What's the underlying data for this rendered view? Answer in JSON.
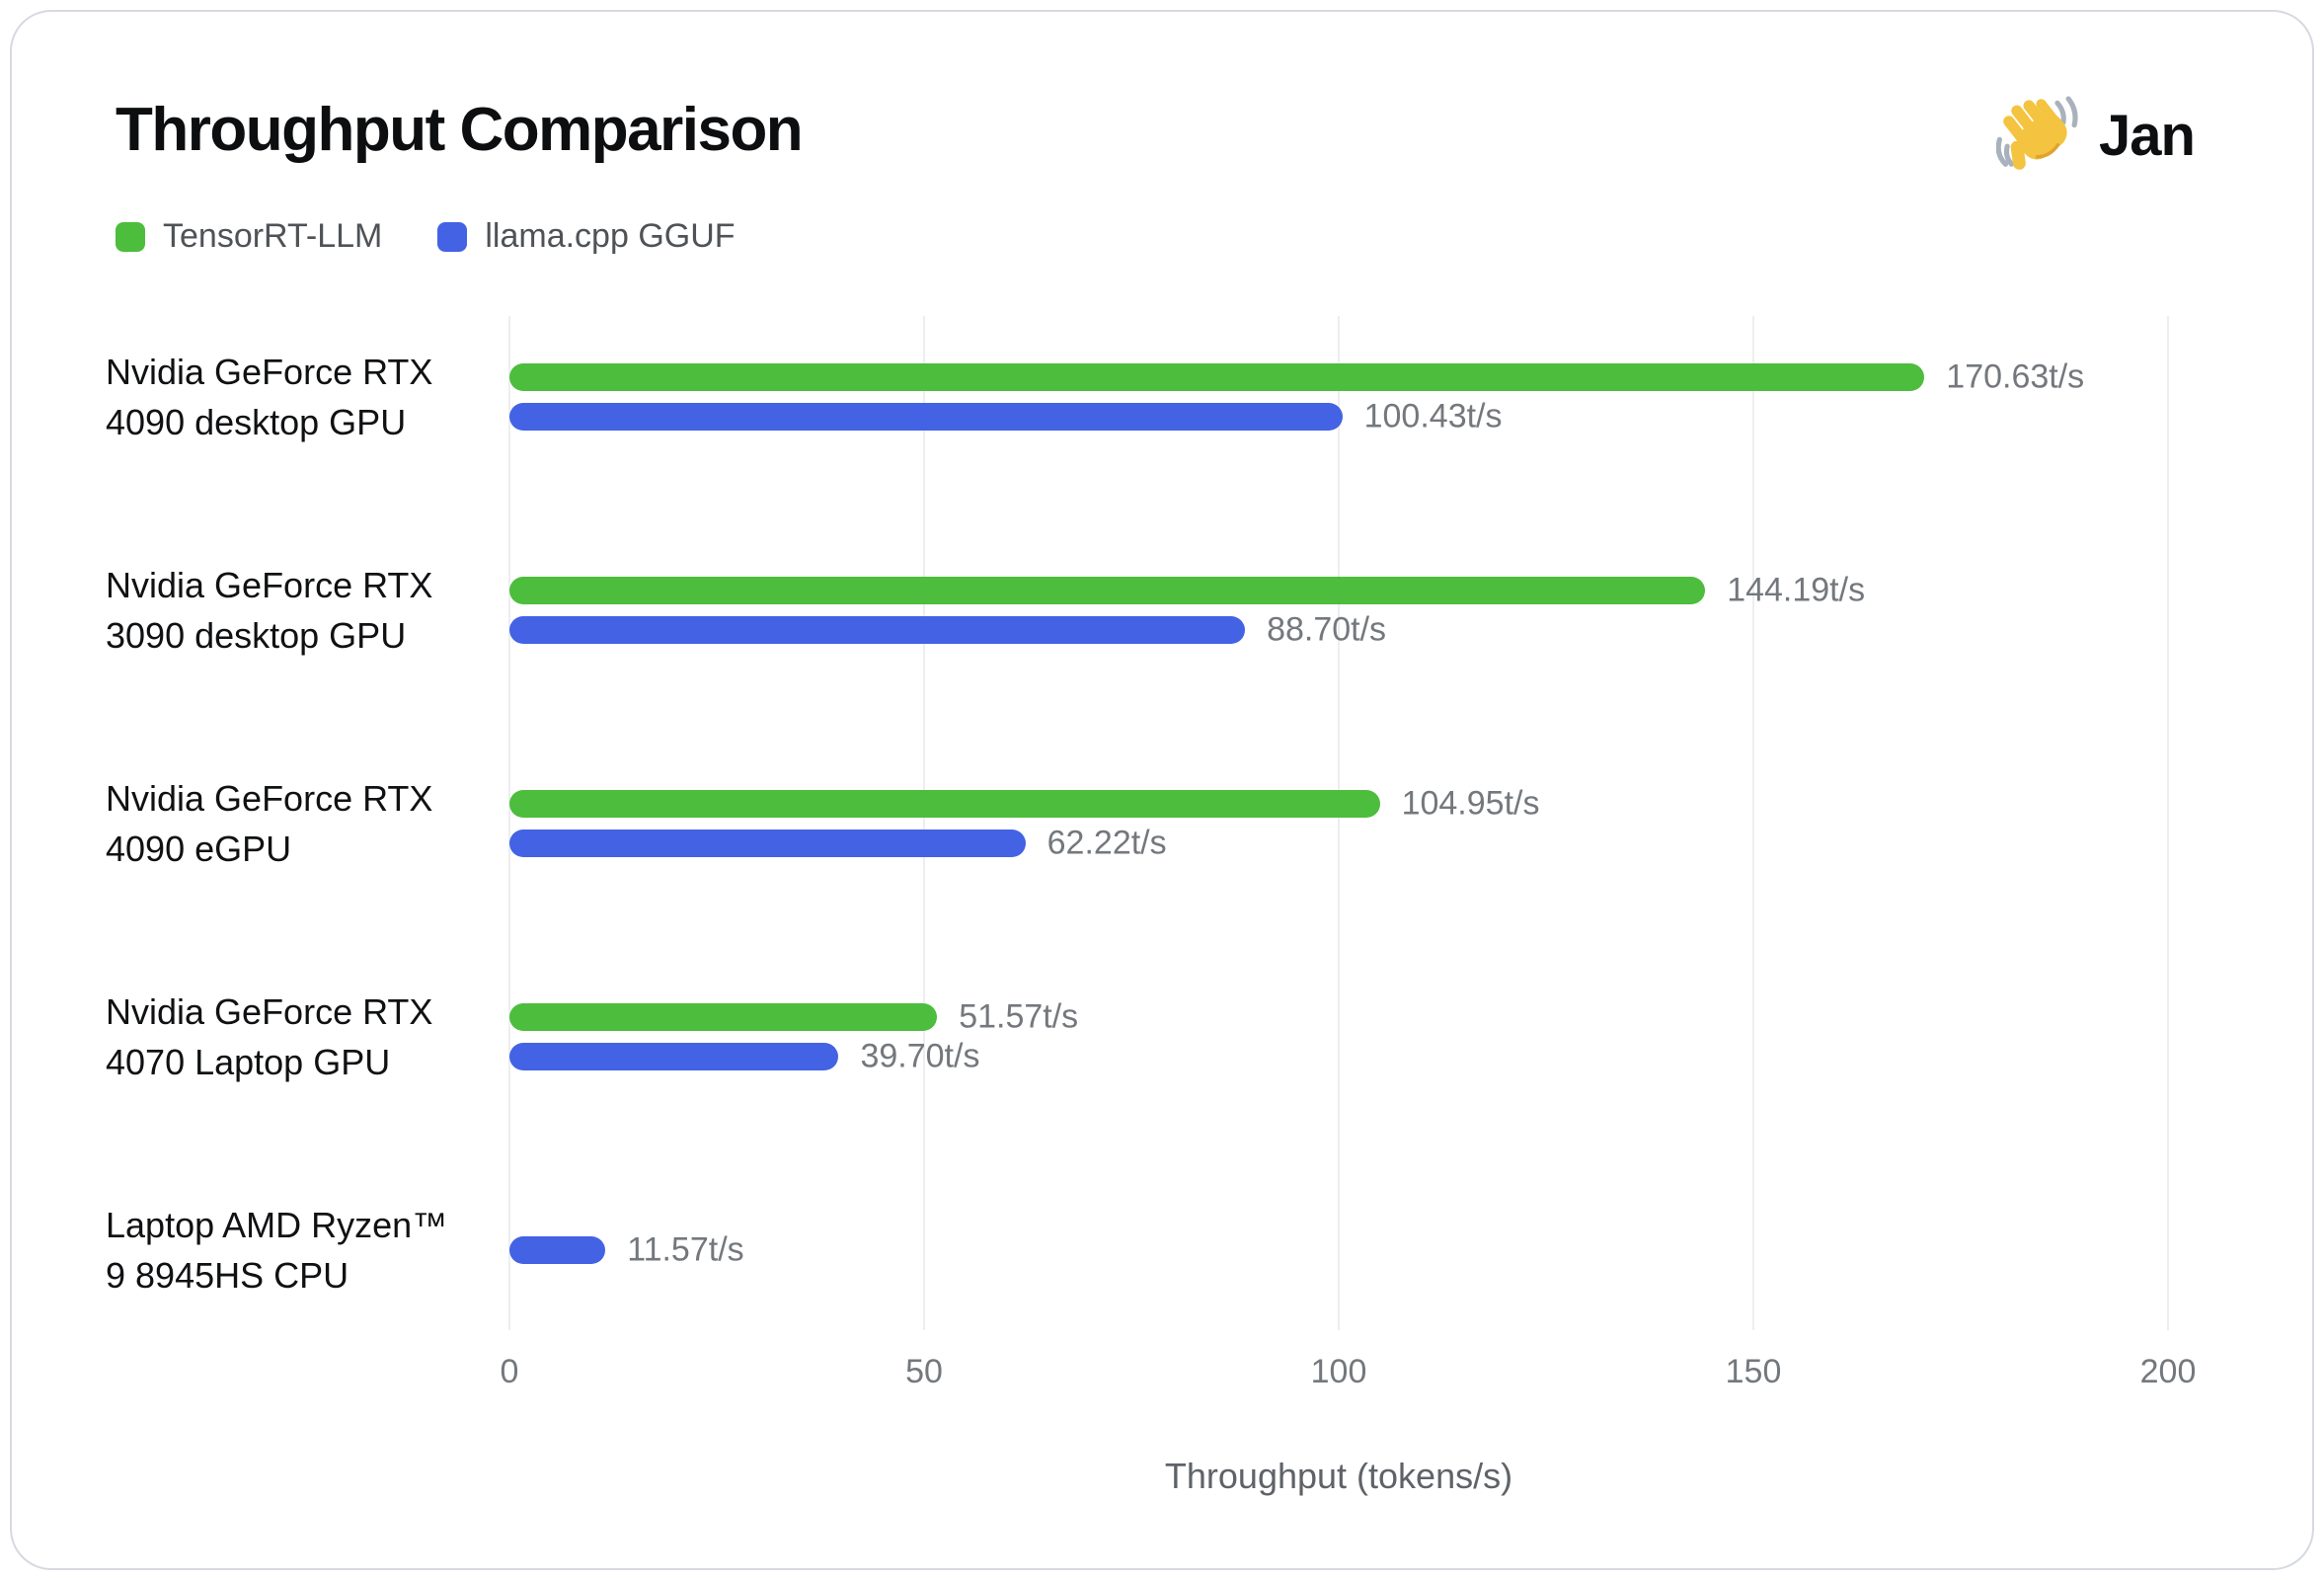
{
  "header": {
    "title": "Throughput Comparison",
    "brand": {
      "name": "Jan",
      "icon": "waving-hand-icon"
    }
  },
  "legend": [
    {
      "label": "TensorRT-LLM",
      "color": "#4cbd3c"
    },
    {
      "label": "llama.cpp GGUF",
      "color": "#4363e4"
    }
  ],
  "chart_data": {
    "type": "bar",
    "orientation": "horizontal",
    "title": "Throughput Comparison",
    "xlabel": "Throughput (tokens/s)",
    "ylabel": "",
    "xlim": [
      0,
      200
    ],
    "x_ticks": [
      "0",
      "50",
      "100",
      "150",
      "200"
    ],
    "grid": "vertical-light",
    "legend_position": "top-left",
    "unit_suffix": "t/s",
    "categories": [
      {
        "label_lines": [
          "Nvidia GeForce RTX",
          "4090 desktop GPU"
        ]
      },
      {
        "label_lines": [
          "Nvidia GeForce RTX",
          "3090 desktop GPU"
        ]
      },
      {
        "label_lines": [
          "Nvidia GeForce RTX",
          "4090 eGPU"
        ]
      },
      {
        "label_lines": [
          "Nvidia GeForce RTX",
          "4070 Laptop GPU"
        ]
      },
      {
        "label_lines": [
          "Laptop AMD Ryzen™",
          "9 8945HS CPU"
        ]
      }
    ],
    "series": [
      {
        "name": "TensorRT-LLM",
        "color": "#4cbd3c",
        "values": [
          170.63,
          144.19,
          104.95,
          51.57,
          null
        ]
      },
      {
        "name": "llama.cpp GGUF",
        "color": "#4363e4",
        "values": [
          100.43,
          88.7,
          62.22,
          39.7,
          11.57
        ]
      }
    ],
    "value_labels": [
      [
        "170.63t/s",
        "144.19t/s",
        "104.95t/s",
        "51.57t/s",
        null
      ],
      [
        "100.43t/s",
        "88.70t/s",
        "62.22t/s",
        "39.70t/s",
        "11.57t/s"
      ]
    ],
    "colors": {
      "grid": "#eeeef1",
      "tick_text": "#74787d",
      "value_text": "#74787d",
      "category_text": "#101113",
      "axis_label_text": "#5f6368"
    }
  }
}
